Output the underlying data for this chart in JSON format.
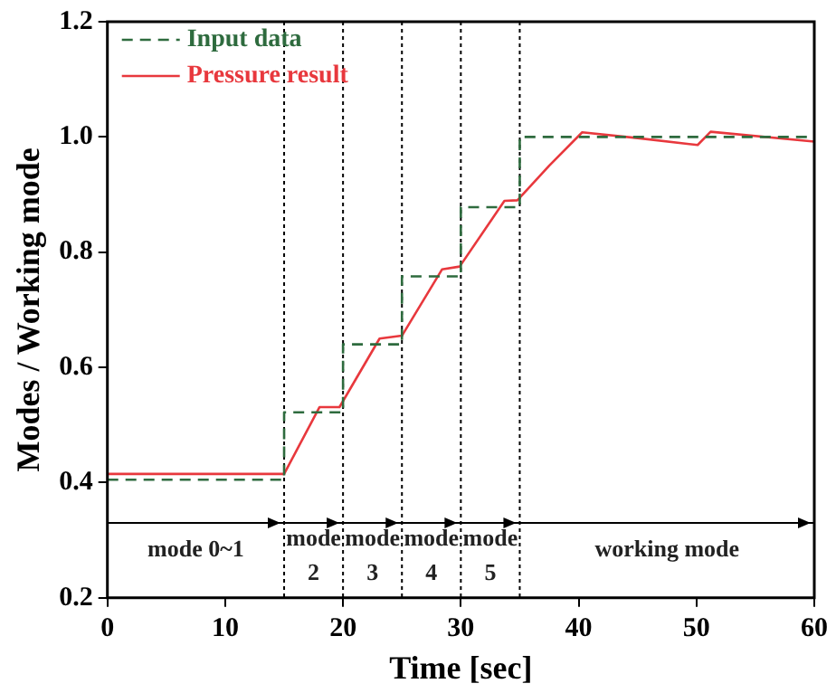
{
  "chart_data": {
    "type": "line",
    "xlabel": "Time [sec]",
    "ylabel": "Modes / Working mode",
    "xlim": [
      0,
      60
    ],
    "xticks": [
      0,
      10,
      20,
      30,
      40,
      50,
      60
    ],
    "ylim": [
      0.2,
      1.2
    ],
    "yticks": [
      0.2,
      0.4,
      0.6,
      0.8,
      {
        "value": 1,
        "label": "1.0"
      },
      1.2
    ],
    "legend": "top left",
    "grid": false,
    "series": [
      {
        "name": "Input data",
        "type": "step",
        "line_style": "dashed",
        "color": "#2e6b3e",
        "x": [
          0,
          15,
          20,
          25,
          30,
          35,
          60
        ],
        "values": [
          0.405,
          0.522,
          0.64,
          0.758,
          0.878,
          1.0,
          1.0
        ]
      },
      {
        "name": "Pressure result",
        "type": "line",
        "line_style": "solid",
        "color": "#e8383d",
        "x": [
          0,
          15,
          18,
          19.7,
          23.1,
          25,
          28.4,
          29.9,
          33.7,
          34.8,
          37.5,
          40.3,
          45,
          50.1,
          51.2,
          60
        ],
        "values": [
          0.415,
          0.415,
          0.531,
          0.531,
          0.65,
          0.655,
          0.77,
          0.775,
          0.889,
          0.89,
          0.95,
          1.008,
          0.998,
          0.986,
          1.009,
          0.992
        ]
      }
    ],
    "ref_lines": [
      {
        "axis": "x",
        "value": 15,
        "color": "#000000",
        "line_style": "dotted"
      },
      {
        "axis": "x",
        "value": 20,
        "color": "#000000",
        "line_style": "dotted"
      },
      {
        "axis": "x",
        "value": 25,
        "color": "#000000",
        "line_style": "dotted"
      },
      {
        "axis": "x",
        "value": 30,
        "color": "#000000",
        "line_style": "dotted"
      },
      {
        "axis": "x",
        "value": 35,
        "color": "#000000",
        "line_style": "dotted"
      },
      {
        "axis": "y",
        "value": 0.33,
        "color": "#000000",
        "line_style": "solid"
      }
    ],
    "annotations": [
      "mode 0~1",
      "mode\n2",
      "mode\n3",
      "mode\n4",
      "mode\n5",
      "working mode"
    ]
  }
}
